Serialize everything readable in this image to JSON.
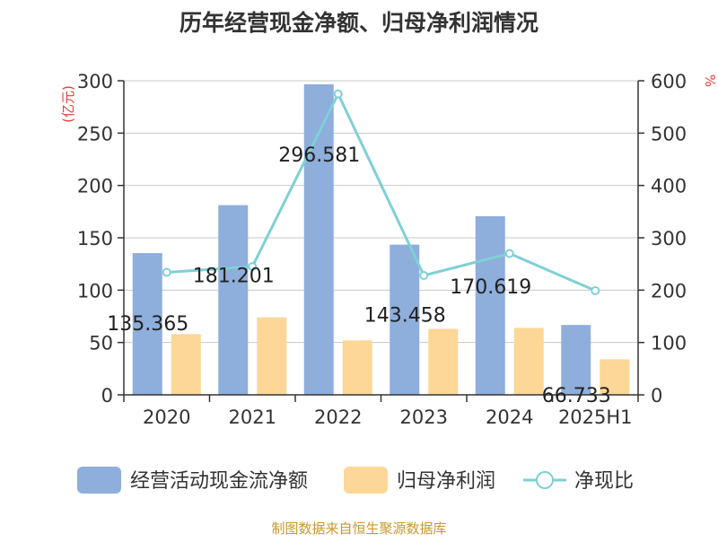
{
  "chart_data": {
    "type": "bar",
    "title": "历年经营现金净额、归母净利润情况",
    "categories": [
      "2020",
      "2021",
      "2022",
      "2023",
      "2024",
      "2025H1"
    ],
    "y_left_unit": "(亿元)",
    "y_right_unit": "%",
    "ylim_left": [
      0,
      300
    ],
    "ylim_right": [
      0,
      600
    ],
    "yticks_left": [
      0,
      50,
      100,
      150,
      200,
      250,
      300
    ],
    "yticks_right": [
      0,
      100,
      200,
      300,
      400,
      500,
      600
    ],
    "grid": true,
    "legend_position": "bottom",
    "series": [
      {
        "name": "经营活动现金流净额",
        "type": "bar",
        "axis": "left",
        "color": "#8eaedb",
        "values": [
          135.365,
          181.201,
          296.581,
          143.458,
          170.619,
          66.733
        ],
        "labels": [
          "135.365",
          "181.201",
          "296.581",
          "143.458",
          "170.619",
          "66.733"
        ]
      },
      {
        "name": "归母净利润",
        "type": "bar",
        "axis": "left",
        "color": "#fdd797",
        "values": [
          58,
          74,
          52,
          63,
          64,
          34
        ]
      },
      {
        "name": "净现比",
        "type": "line",
        "axis": "right",
        "color": "#7fd0d6",
        "values": [
          234,
          245,
          575,
          228,
          270,
          199
        ]
      }
    ]
  },
  "footer": {
    "source": "制图数据来自恒生聚源数据库"
  }
}
